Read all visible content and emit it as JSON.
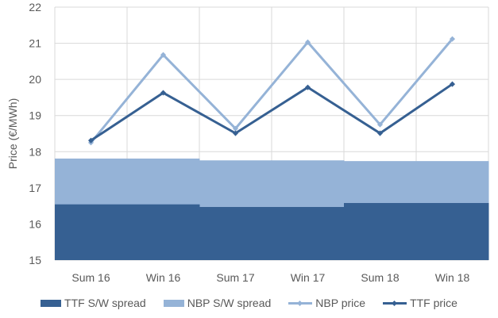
{
  "chart_data": {
    "type": "bar+line",
    "title": "",
    "xlabel": "",
    "ylabel": "Price (€/MWh)",
    "ylim": [
      15,
      22
    ],
    "yticks": [
      15,
      16,
      17,
      18,
      19,
      20,
      21,
      22
    ],
    "grid": true,
    "legend_position": "bottom",
    "categories": [
      "Sum 16",
      "Win 16",
      "Sum 17",
      "Win 17",
      "Sum 18",
      "Win 18"
    ],
    "stacked_spreads": {
      "periods": [
        "Sum 16 / Win 16",
        "Sum 17 / Win 17",
        "Sum 18 / Win 18"
      ],
      "base": 15,
      "series": [
        {
          "name": "TTF S/W spread",
          "color": "#366092",
          "top_values": [
            16.54,
            16.47,
            16.58
          ]
        },
        {
          "name": "NBP S/W spread",
          "color": "#95B3D7",
          "top_values": [
            17.81,
            17.76,
            17.74
          ]
        }
      ]
    },
    "series": [
      {
        "name": "NBP price",
        "type": "line",
        "color": "#95B3D7",
        "values": [
          18.25,
          20.68,
          18.64,
          21.03,
          18.75,
          21.12
        ]
      },
      {
        "name": "TTF price",
        "type": "line",
        "color": "#366092",
        "values": [
          18.31,
          19.63,
          18.51,
          19.78,
          18.51,
          19.87
        ]
      }
    ]
  },
  "legend": {
    "items": [
      {
        "label": "TTF S/W spread",
        "kind": "box",
        "color": "#366092"
      },
      {
        "label": "NBP S/W spread",
        "kind": "box",
        "color": "#95B3D7"
      },
      {
        "label": "NBP price",
        "kind": "line",
        "color": "#95B3D7"
      },
      {
        "label": "TTF price",
        "kind": "line",
        "color": "#366092"
      }
    ]
  },
  "colors": {
    "grid": "#D9D9D9",
    "text": "#595959",
    "dark": "#366092",
    "light": "#95B3D7"
  }
}
